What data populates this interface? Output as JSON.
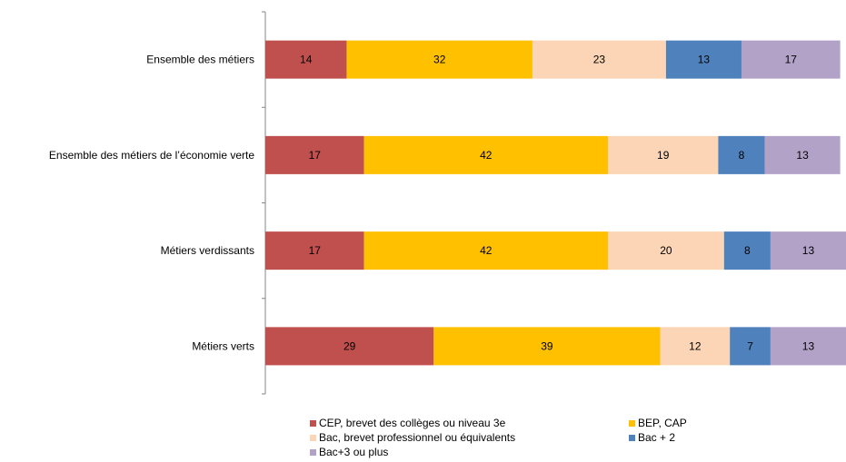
{
  "chart_data": {
    "type": "bar",
    "orientation": "horizontal",
    "stacked": true,
    "percent": true,
    "title": "",
    "xlabel": "",
    "ylabel": "",
    "xlim": [
      0,
      100
    ],
    "grid": false,
    "legend_position": "bottom",
    "categories": [
      "Ensemble des métiers",
      "Ensemble des métiers de l’économie verte",
      "Métiers verdissants",
      "Métiers verts"
    ],
    "series": [
      {
        "name": "CEP, brevet des collèges ou niveau 3e",
        "color": "#C0504D",
        "values": [
          14,
          17,
          17,
          29
        ]
      },
      {
        "name": "BEP, CAP",
        "color": "#FFC000",
        "values": [
          32,
          42,
          42,
          39
        ]
      },
      {
        "name": "Bac, brevet professionnel ou équivalents",
        "color": "#FBD5B5",
        "values": [
          23,
          19,
          20,
          12
        ]
      },
      {
        "name": "Bac + 2",
        "color": "#4F81BD",
        "values": [
          13,
          8,
          8,
          7
        ]
      },
      {
        "name": "Bac+3 ou plus",
        "color": "#B3A2C7",
        "values": [
          17,
          13,
          13,
          13
        ]
      }
    ]
  }
}
